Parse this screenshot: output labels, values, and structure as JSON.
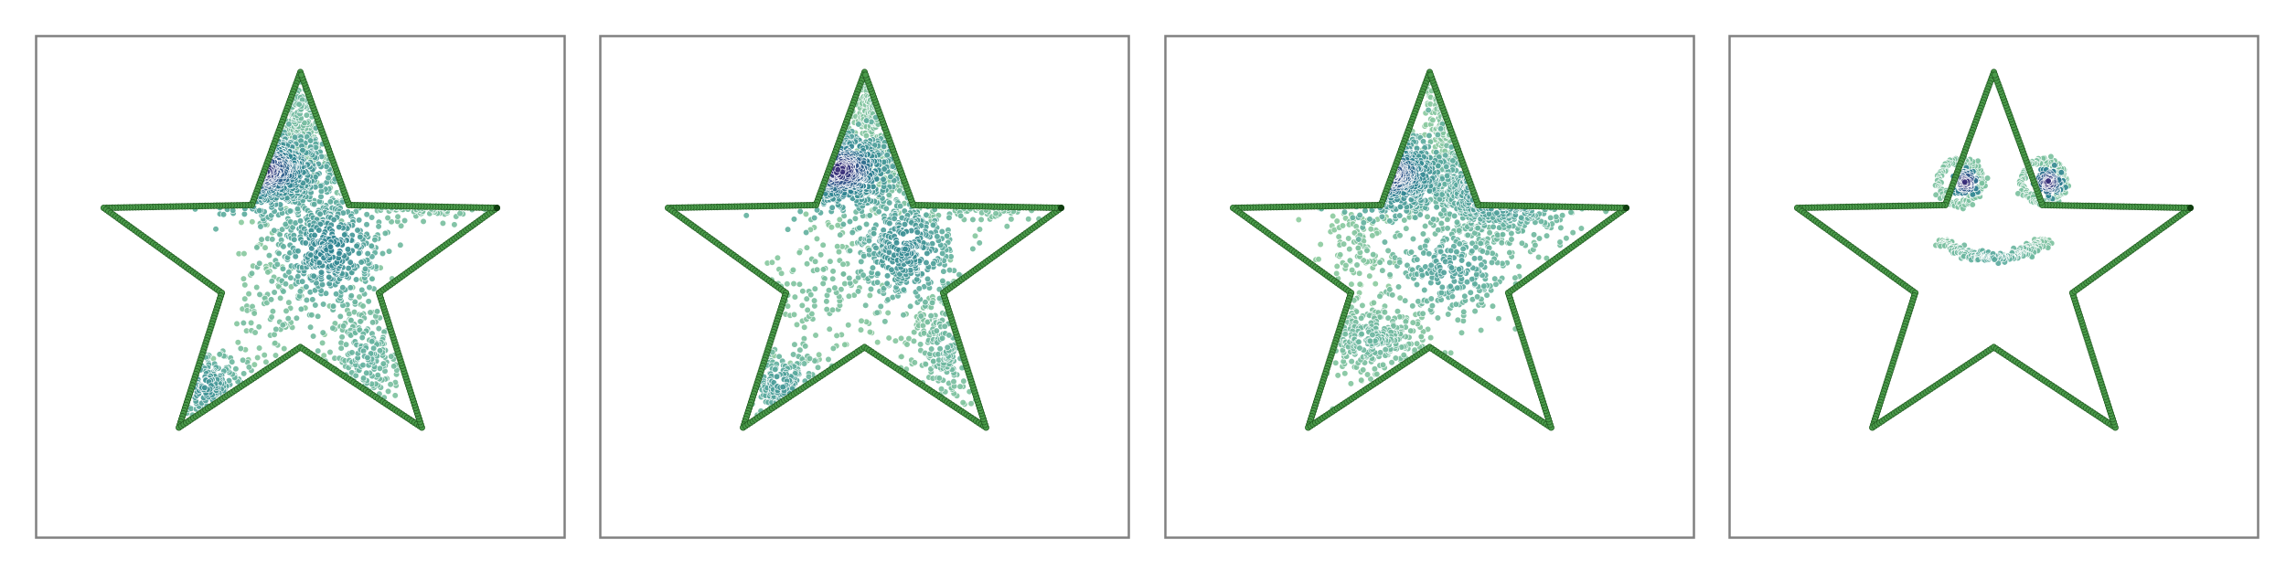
{
  "chart_data": [
    {
      "type": "scatter",
      "title": "",
      "xlabel": "",
      "ylabel": "",
      "grid": false,
      "legend": "none",
      "colors": {
        "boundary": "#3c8c3c",
        "boundary_edge": "#1f5a1f",
        "density_low": "#90cc9c",
        "density_mid": "#2c8290",
        "density_high": "#3b1a6e"
      },
      "boundary": {
        "shape": "five-point-star",
        "center": [
          0.5,
          0.5
        ],
        "outer_radius": 0.5,
        "inner_radius": 0.2
      },
      "series": [
        {
          "clusters": [
            {
              "center": [
                0.4,
                0.75
              ],
              "spread": [
                0.08,
                0.05
              ],
              "points": 520,
              "density": 0.95
            },
            {
              "center": [
                0.57,
                0.55
              ],
              "spread": [
                0.07,
                0.08
              ],
              "points": 480,
              "density": 0.65
            },
            {
              "center": [
                0.8,
                0.75
              ],
              "spread": [
                0.08,
                0.04
              ],
              "points": 260,
              "density": 0.55
            },
            {
              "center": [
                0.27,
                0.2
              ],
              "spread": [
                0.05,
                0.05
              ],
              "points": 160,
              "density": 0.55
            },
            {
              "center": [
                0.5,
                0.92
              ],
              "spread": [
                0.05,
                0.1
              ],
              "points": 220,
              "density": 0.25
            },
            {
              "center": [
                0.66,
                0.28
              ],
              "spread": [
                0.05,
                0.08
              ],
              "points": 180,
              "density": 0.35
            },
            {
              "center": [
                0.43,
                0.4
              ],
              "spread": [
                0.06,
                0.1
              ],
              "points": 90,
              "density": 0.2
            }
          ]
        }
      ]
    },
    {
      "type": "scatter",
      "title": "",
      "xlabel": "",
      "ylabel": "",
      "grid": false,
      "legend": "none",
      "boundary": {
        "shape": "five-point-star",
        "center": [
          0.5,
          0.5
        ],
        "outer_radius": 0.5,
        "inner_radius": 0.2
      },
      "series": [
        {
          "clusters": [
            {
              "center": [
                0.44,
                0.75
              ],
              "spread": [
                0.07,
                0.05
              ],
              "points": 480,
              "density": 0.95
            },
            {
              "center": [
                0.6,
                0.55
              ],
              "spread": [
                0.07,
                0.08
              ],
              "points": 420,
              "density": 0.6
            },
            {
              "center": [
                0.78,
                0.75
              ],
              "spread": [
                0.08,
                0.04
              ],
              "points": 260,
              "density": 0.5
            },
            {
              "center": [
                0.3,
                0.2
              ],
              "spread": [
                0.05,
                0.05
              ],
              "points": 160,
              "density": 0.5
            },
            {
              "center": [
                0.55,
                0.9
              ],
              "spread": [
                0.05,
                0.1
              ],
              "points": 240,
              "density": 0.2
            },
            {
              "center": [
                0.7,
                0.3
              ],
              "spread": [
                0.05,
                0.08
              ],
              "points": 180,
              "density": 0.3
            },
            {
              "center": [
                0.4,
                0.45
              ],
              "spread": [
                0.08,
                0.1
              ],
              "points": 130,
              "density": 0.2
            }
          ]
        }
      ]
    },
    {
      "type": "scatter",
      "title": "",
      "xlabel": "",
      "ylabel": "",
      "grid": false,
      "legend": "none",
      "boundary": {
        "shape": "five-point-star",
        "center": [
          0.5,
          0.5
        ],
        "outer_radius": 0.5,
        "inner_radius": 0.2
      },
      "series": [
        {
          "clusters": [
            {
              "center": [
                0.4,
                0.74
              ],
              "spread": [
                0.07,
                0.05
              ],
              "points": 450,
              "density": 0.9
            },
            {
              "center": [
                0.67,
                0.7
              ],
              "spread": [
                0.09,
                0.06
              ],
              "points": 420,
              "density": 0.6
            },
            {
              "center": [
                0.55,
                0.5
              ],
              "spread": [
                0.09,
                0.07
              ],
              "points": 300,
              "density": 0.45
            },
            {
              "center": [
                0.36,
                0.32
              ],
              "spread": [
                0.07,
                0.05
              ],
              "points": 280,
              "density": 0.3
            },
            {
              "center": [
                0.55,
                0.88
              ],
              "spread": [
                0.04,
                0.08
              ],
              "points": 150,
              "density": 0.15
            },
            {
              "center": [
                0.33,
                0.55
              ],
              "spread": [
                0.05,
                0.06
              ],
              "points": 90,
              "density": 0.15
            }
          ]
        }
      ]
    },
    {
      "type": "scatter",
      "title": "",
      "xlabel": "",
      "ylabel": "",
      "grid": false,
      "legend": "none",
      "boundary": {
        "shape": "five-point-star",
        "center": [
          0.5,
          0.5
        ],
        "outer_radius": 0.5,
        "inner_radius": 0.2
      },
      "series": [
        {
          "features": [
            {
              "kind": "eye",
              "center": [
                0.42,
                0.72
              ],
              "ring_radius": 0.055,
              "pupil_offset": [
                0.012,
                0.0
              ],
              "pupil_radius": 0.028,
              "points": 230
            },
            {
              "kind": "eye",
              "center": [
                0.62,
                0.72
              ],
              "ring_radius": 0.055,
              "pupil_offset": [
                0.012,
                0.0
              ],
              "pupil_radius": 0.028,
              "points": 230
            },
            {
              "kind": "smile",
              "center": [
                0.5,
                0.6
              ],
              "radius": 0.13,
              "arc_degrees": [
                200,
                340
              ],
              "thickness": 0.018,
              "points": 260
            }
          ]
        }
      ]
    }
  ]
}
